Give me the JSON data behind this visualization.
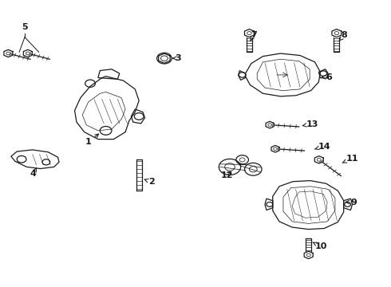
{
  "bg_color": "#ffffff",
  "line_color": "#1a1a1a",
  "lw": 0.9,
  "figsize": [
    4.9,
    3.6
  ],
  "dpi": 100,
  "labels": {
    "1": [
      0.225,
      0.505,
      0.258,
      0.535
    ],
    "2": [
      0.37,
      0.35,
      0.358,
      0.37
    ],
    "3": [
      0.455,
      0.795,
      0.432,
      0.795
    ],
    "4": [
      0.083,
      0.39,
      0.093,
      0.415
    ],
    "5": [
      0.062,
      0.895,
      0.062,
      0.875
    ],
    "6": [
      0.845,
      0.73,
      0.82,
      0.73
    ],
    "7": [
      0.645,
      0.878,
      0.635,
      0.855
    ],
    "8": [
      0.88,
      0.878,
      0.868,
      0.855
    ],
    "9": [
      0.905,
      0.295,
      0.882,
      0.295
    ],
    "10": [
      0.82,
      0.138,
      0.8,
      0.158
    ],
    "11": [
      0.9,
      0.448,
      0.878,
      0.435
    ],
    "12": [
      0.58,
      0.388,
      0.6,
      0.405
    ],
    "13": [
      0.8,
      0.568,
      0.773,
      0.562
    ],
    "14": [
      0.83,
      0.49,
      0.8,
      0.478
    ]
  }
}
